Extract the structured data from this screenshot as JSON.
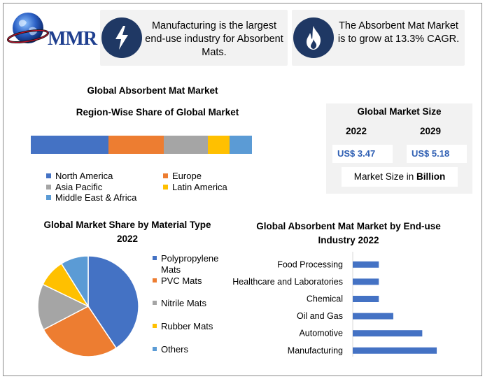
{
  "logo": {
    "text": "MMR",
    "icon": "globe-icon"
  },
  "info_boxes": [
    {
      "icon": "lightning-icon",
      "text": "Manufacturing is the largest end-use industry for Absorbent Mats."
    },
    {
      "icon": "flame-icon",
      "text": "The Absorbent Mat Market is to grow at 13.3% CAGR."
    }
  ],
  "region_chart": {
    "title": "Global Absorbent Mat Market",
    "subtitle": "Region-Wise Share of Global Market"
  },
  "market_size": {
    "title": "Global Market Size",
    "year_a": "2022",
    "year_b": "2029",
    "value_a": "US$ 3.47",
    "value_b": "US$ 5.18",
    "unit_prefix": "Market Size in ",
    "unit_bold": "Billion"
  },
  "pie_chart": {
    "title_line1": "Global Market Share by Material Type",
    "title_line2": "2022"
  },
  "bar_chart": {
    "title_line1": "Global Absorbent Mat Market by End-use",
    "title_line2": "Industry  2022"
  },
  "chart_data": [
    {
      "type": "bar",
      "orientation": "horizontal-stacked",
      "title": "Region-Wise Share of Global Market",
      "categories": [
        "North America",
        "Europe",
        "Asia Pacific",
        "Latin America",
        "Middle East & Africa"
      ],
      "values": [
        35,
        25,
        20,
        10,
        10
      ],
      "colors": [
        "#4472c4",
        "#ed7d31",
        "#a5a5a5",
        "#ffc000",
        "#5b9bd5"
      ],
      "legend": "bottom"
    },
    {
      "type": "pie",
      "title": "Global Market Share by Material Type 2022",
      "categories": [
        "Polypropylene Mats",
        "PVC Mats",
        "Nitrile Mats",
        "Rubber Mats",
        "Others"
      ],
      "values": [
        41,
        27,
        15,
        9,
        9
      ],
      "colors": [
        "#4472c4",
        "#ed7d31",
        "#a5a5a5",
        "#ffc000",
        "#5b9bd5"
      ],
      "legend": "right"
    },
    {
      "type": "bar",
      "orientation": "horizontal",
      "title": "Global Absorbent Mat Market by End-use Industry 2022",
      "categories": [
        "Food Processing",
        "Healthcare and Laboratories",
        "Chemical",
        "Oil and Gas",
        "Automotive",
        "Manufacturing"
      ],
      "values": [
        1.8,
        1.8,
        1.8,
        2.8,
        4.8,
        5.8
      ],
      "color": "#4472c4",
      "grid": false,
      "axis_ticks": false
    }
  ]
}
